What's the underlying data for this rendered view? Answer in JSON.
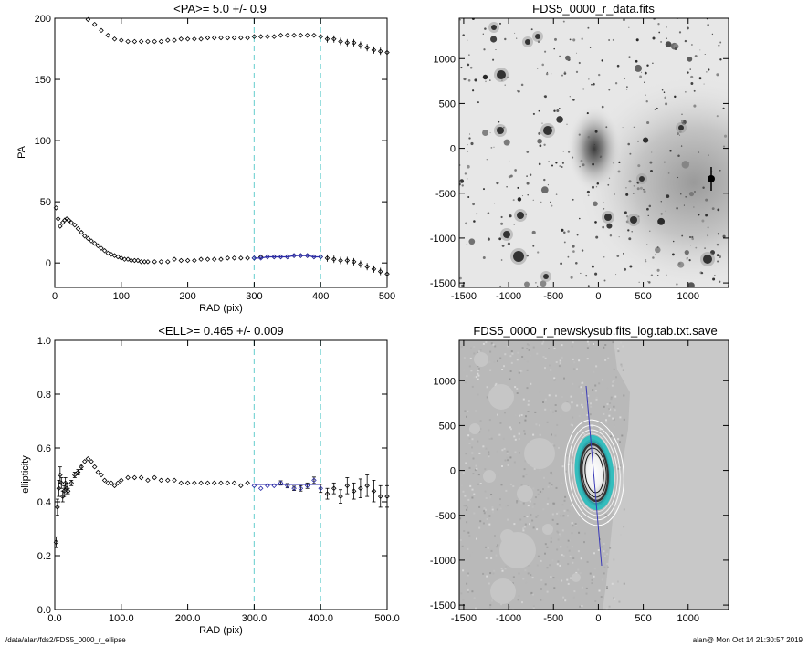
{
  "footer": {
    "path": "/data/alan/fds2/FDS5_0000_r_ellipse",
    "stamp": "alan@  Mon Oct 14 21:30:57 2019"
  },
  "chart_data": [
    {
      "id": "pa",
      "type": "scatter",
      "title": "<PA>=   5.0 +/-   0.9",
      "xlabel": "RAD (pix)",
      "ylabel": "PA",
      "xlim": [
        0,
        500
      ],
      "ylim": [
        -20,
        200
      ],
      "xticks": [
        0,
        100,
        200,
        300,
        400,
        500
      ],
      "yticks": [
        0,
        50,
        100,
        150,
        200
      ],
      "vlines": [
        300,
        400
      ],
      "vline_color": "#7fd6d6",
      "series": [
        {
          "role": "upper branch",
          "x": [
            50,
            60,
            70,
            80,
            90,
            100,
            110,
            120,
            130,
            140,
            150,
            160,
            170,
            180,
            190,
            200,
            210,
            220,
            230,
            240,
            250,
            260,
            270,
            280,
            290,
            300,
            310,
            320,
            330,
            340,
            350,
            360,
            370,
            380,
            390,
            400,
            410,
            420,
            430,
            440,
            450,
            460,
            470,
            480,
            490,
            500
          ],
          "y": [
            199,
            195,
            190,
            186,
            183,
            182,
            181,
            181,
            181,
            181,
            181,
            181,
            182,
            182,
            183,
            183,
            183,
            183,
            184,
            184,
            184,
            184,
            184,
            184,
            184,
            185,
            185,
            185,
            185,
            186,
            186,
            186,
            186,
            186,
            186,
            185,
            183,
            183,
            181,
            180,
            180,
            178,
            176,
            174,
            173,
            172
          ]
        },
        {
          "role": "lower branch",
          "x": [
            2,
            5,
            8,
            12,
            15,
            18,
            21,
            25,
            30,
            35,
            40,
            45,
            50,
            55,
            60,
            65,
            70,
            75,
            80,
            85,
            90,
            95,
            100,
            105,
            110,
            115,
            120,
            125,
            130,
            135,
            140,
            150,
            160,
            170,
            180,
            190,
            200,
            210,
            220,
            230,
            240,
            250,
            260,
            270,
            280,
            290,
            300,
            310,
            320,
            330,
            340,
            350,
            360,
            370,
            380,
            390,
            400,
            410,
            420,
            430,
            440,
            450,
            460,
            470,
            480,
            490,
            500
          ],
          "y": [
            45,
            36,
            30,
            33,
            35,
            36,
            35,
            33,
            31,
            28,
            25,
            22,
            20,
            18,
            16,
            14,
            12,
            10,
            8,
            7,
            6,
            5,
            4,
            3,
            3,
            2,
            2,
            2,
            1,
            1,
            1,
            1,
            1,
            1,
            3,
            2,
            2,
            2,
            3,
            3,
            3,
            3,
            4,
            4,
            4,
            4,
            4,
            5,
            5,
            5,
            5,
            5,
            6,
            6,
            6,
            5,
            5,
            4,
            3,
            2,
            2,
            1,
            -1,
            -3,
            -5,
            -7,
            -9
          ]
        },
        {
          "role": "fitted points",
          "color": "#2a2aa8",
          "x": [
            300,
            310,
            320,
            330,
            340,
            350,
            360,
            370,
            380,
            390,
            400
          ],
          "y": [
            4,
            4,
            5,
            5,
            5,
            5,
            6,
            6,
            6,
            5,
            5
          ]
        }
      ]
    },
    {
      "id": "ell",
      "type": "scatter",
      "title": "<ELL>= 0.465 +/-  0.009",
      "xlabel": "RAD (pix)",
      "ylabel": "ellipticity",
      "xlim": [
        0,
        500
      ],
      "ylim": [
        0,
        1
      ],
      "xticks": [
        0,
        100,
        200,
        300,
        400,
        500
      ],
      "yticks": [
        0.0,
        0.2,
        0.4,
        0.6,
        0.8,
        1.0
      ],
      "vlines": [
        300,
        400
      ],
      "vline_color": "#7fd6d6",
      "fit_line": {
        "x": [
          300,
          400
        ],
        "y": [
          0.465,
          0.465
        ],
        "color": "#2a2aa8"
      },
      "series": [
        {
          "role": "profile",
          "x": [
            2,
            4,
            6,
            8,
            10,
            12,
            14,
            16,
            18,
            20,
            25,
            30,
            35,
            40,
            45,
            50,
            55,
            60,
            65,
            70,
            75,
            80,
            85,
            90,
            95,
            100,
            110,
            120,
            130,
            140,
            150,
            160,
            170,
            180,
            190,
            200,
            210,
            220,
            230,
            240,
            250,
            260,
            270,
            280,
            290,
            300,
            310,
            320,
            330,
            340,
            350,
            360,
            370,
            380,
            390,
            400,
            410,
            420,
            430,
            440,
            450,
            460,
            470,
            480,
            490,
            500
          ],
          "y": [
            0.25,
            0.38,
            0.45,
            0.5,
            0.47,
            0.42,
            0.44,
            0.47,
            0.45,
            0.44,
            0.47,
            0.5,
            0.51,
            0.53,
            0.55,
            0.56,
            0.55,
            0.53,
            0.51,
            0.5,
            0.48,
            0.47,
            0.47,
            0.46,
            0.47,
            0.48,
            0.49,
            0.49,
            0.49,
            0.48,
            0.49,
            0.48,
            0.48,
            0.48,
            0.47,
            0.47,
            0.47,
            0.47,
            0.47,
            0.47,
            0.47,
            0.47,
            0.47,
            0.46,
            0.47,
            0.46,
            0.45,
            0.46,
            0.46,
            0.47,
            0.46,
            0.45,
            0.45,
            0.46,
            0.48,
            0.45,
            0.43,
            0.45,
            0.42,
            0.46,
            0.44,
            0.45,
            0.46,
            0.44,
            0.42,
            0.42
          ],
          "err": [
            0.02,
            0.03,
            0.03,
            0.03,
            0.02,
            0.02,
            0.02,
            0.02,
            0.02,
            0.01,
            0.01,
            0.01,
            0.01,
            0.01,
            0.005,
            0.005,
            0.005,
            0.005,
            0.005,
            0.005,
            0.005,
            0.005,
            0.005,
            0.005,
            0.005,
            0.005,
            0.005,
            0.005,
            0.005,
            0.005,
            0.005,
            0.005,
            0.005,
            0.005,
            0.005,
            0.005,
            0.005,
            0.005,
            0.005,
            0.005,
            0.005,
            0.005,
            0.005,
            0.005,
            0.005,
            0.006,
            0.006,
            0.006,
            0.006,
            0.008,
            0.008,
            0.008,
            0.01,
            0.01,
            0.012,
            0.015,
            0.02,
            0.02,
            0.025,
            0.03,
            0.03,
            0.035,
            0.04,
            0.04,
            0.04,
            0.04
          ]
        }
      ]
    },
    {
      "id": "img1",
      "type": "image",
      "title": "FDS5_0000_r_data.fits",
      "xlim": [
        -1550,
        1450
      ],
      "ylim": [
        -1550,
        1450
      ],
      "xticks": [
        -1500,
        -1000,
        -500,
        0,
        500,
        1000
      ],
      "yticks": [
        -1500,
        -1000,
        -500,
        0,
        500,
        1000
      ]
    },
    {
      "id": "img2",
      "type": "image",
      "title": "FDS5_0000_r_newskysub.fits_log.tab.txt.save",
      "xlim": [
        -1550,
        1450
      ],
      "ylim": [
        -1550,
        1450
      ],
      "xticks": [
        -1500,
        -1000,
        -500,
        0,
        500,
        1000
      ],
      "yticks": [
        -1500,
        -1000,
        -500,
        0,
        500,
        1000
      ]
    }
  ]
}
